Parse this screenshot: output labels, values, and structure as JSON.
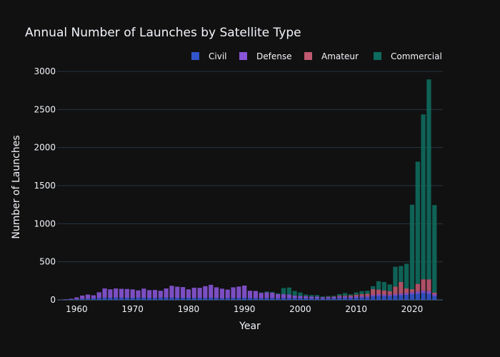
{
  "chart_data": {
    "type": "bar",
    "barmode": "stack",
    "title": "Annual Number of Launches by Satellite Type",
    "xlabel": "Year",
    "ylabel": "Number of Launches",
    "xlim": [
      1956.5,
      2025.5
    ],
    "ylim": [
      0,
      3000
    ],
    "xticks": [
      1960,
      1970,
      1980,
      1990,
      2000,
      2010,
      2020
    ],
    "yticks": [
      0,
      500,
      1000,
      1500,
      2000,
      2500,
      3000
    ],
    "grid": true,
    "legend_position": "top-right",
    "background": "#111111",
    "x": [
      1957,
      1958,
      1959,
      1960,
      1961,
      1962,
      1963,
      1964,
      1965,
      1966,
      1967,
      1968,
      1969,
      1970,
      1971,
      1972,
      1973,
      1974,
      1975,
      1976,
      1977,
      1978,
      1979,
      1980,
      1981,
      1982,
      1983,
      1984,
      1985,
      1986,
      1987,
      1988,
      1989,
      1990,
      1991,
      1992,
      1993,
      1994,
      1995,
      1996,
      1997,
      1998,
      1999,
      2000,
      2001,
      2002,
      2003,
      2004,
      2005,
      2006,
      2007,
      2008,
      2009,
      2010,
      2011,
      2012,
      2013,
      2014,
      2015,
      2016,
      2017,
      2018,
      2019,
      2020,
      2021,
      2022,
      2023,
      2024
    ],
    "series": [
      {
        "name": "Civil",
        "color": "#3355cc",
        "values": [
          2,
          3,
          5,
          8,
          12,
          15,
          20,
          25,
          30,
          28,
          30,
          30,
          28,
          28,
          30,
          28,
          28,
          25,
          30,
          30,
          30,
          28,
          28,
          28,
          25,
          28,
          25,
          28,
          25,
          22,
          25,
          25,
          25,
          28,
          25,
          22,
          22,
          25,
          25,
          20,
          25,
          22,
          22,
          22,
          20,
          18,
          18,
          15,
          18,
          20,
          25,
          25,
          25,
          28,
          30,
          32,
          45,
          50,
          50,
          50,
          55,
          60,
          65,
          75,
          80,
          90,
          80,
          50
        ]
      },
      {
        "name": "Defense",
        "color": "#8855d6",
        "values": [
          1,
          5,
          10,
          25,
          45,
          55,
          40,
          75,
          120,
          110,
          120,
          115,
          115,
          110,
          95,
          120,
          100,
          105,
          90,
          120,
          155,
          145,
          140,
          110,
          135,
          130,
          155,
          170,
          140,
          125,
          110,
          140,
          150,
          160,
          95,
          95,
          70,
          75,
          70,
          55,
          50,
          50,
          35,
          30,
          30,
          25,
          25,
          20,
          18,
          18,
          20,
          20,
          18,
          20,
          20,
          18,
          20,
          25,
          20,
          18,
          20,
          25,
          25,
          25,
          30,
          35,
          35,
          25
        ]
      },
      {
        "name": "Amateur",
        "color": "#bf5870",
        "values": [
          0,
          0,
          0,
          0,
          0,
          0,
          0,
          0,
          0,
          0,
          0,
          0,
          0,
          0,
          0,
          0,
          0,
          0,
          0,
          0,
          0,
          0,
          0,
          0,
          0,
          0,
          0,
          0,
          0,
          0,
          0,
          0,
          0,
          0,
          0,
          0,
          0,
          0,
          0,
          0,
          0,
          0,
          0,
          0,
          0,
          0,
          0,
          0,
          5,
          5,
          10,
          10,
          15,
          20,
          25,
          30,
          75,
          60,
          55,
          45,
          100,
          150,
          60,
          40,
          100,
          145,
          155,
          20
        ]
      },
      {
        "name": "Commercial",
        "color": "#0e6b5e",
        "values": [
          0,
          0,
          0,
          0,
          0,
          0,
          0,
          0,
          0,
          0,
          0,
          0,
          0,
          0,
          0,
          0,
          0,
          0,
          0,
          0,
          0,
          0,
          0,
          0,
          0,
          0,
          0,
          0,
          0,
          0,
          0,
          0,
          0,
          0,
          0,
          0,
          5,
          10,
          10,
          10,
          80,
          90,
          60,
          45,
          20,
          20,
          20,
          10,
          10,
          10,
          20,
          35,
          15,
          30,
          40,
          40,
          40,
          110,
          110,
          90,
          260,
          210,
          325,
          1110,
          1605,
          2165,
          2625,
          1150
        ]
      }
    ]
  }
}
